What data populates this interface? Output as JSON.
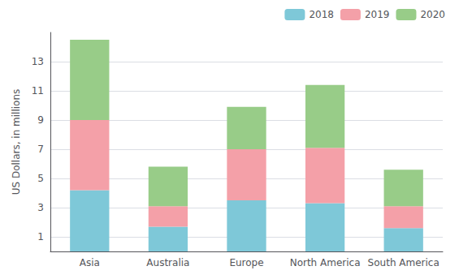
{
  "chart_data": {
    "type": "bar",
    "stacked": true,
    "categories": [
      "Asia",
      "Australia",
      "Europe",
      "North America",
      "South America"
    ],
    "series": [
      {
        "name": "2018",
        "color": "#7EC8D8",
        "values": [
          4.2,
          1.7,
          3.5,
          3.3,
          1.6
        ]
      },
      {
        "name": "2019",
        "color": "#F4A0A8",
        "values": [
          4.8,
          1.4,
          3.5,
          3.8,
          1.5
        ]
      },
      {
        "name": "2020",
        "color": "#98CC88",
        "values": [
          5.5,
          2.7,
          2.9,
          4.3,
          2.5
        ]
      }
    ],
    "ylabel": "US Dollars, in millions",
    "ylim": [
      0,
      15
    ],
    "yticks": [
      1,
      3,
      5,
      7,
      9,
      11,
      13
    ],
    "grid": true,
    "legend": "upper right"
  }
}
